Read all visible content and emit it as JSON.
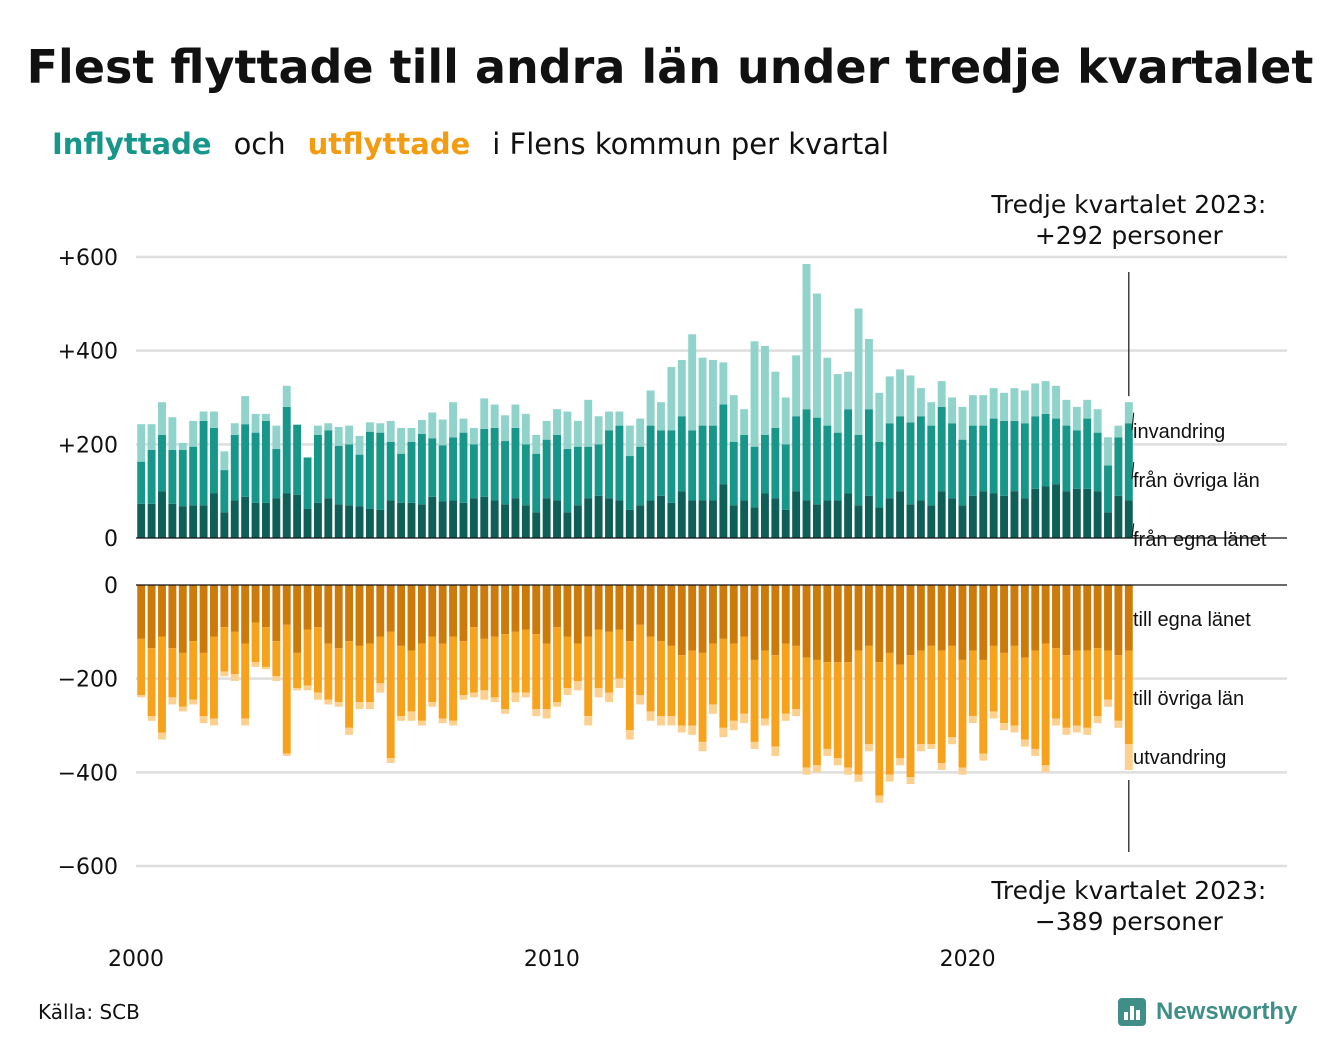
{
  "header": {
    "title": "Flest flyttade till andra län under tredje kvartalet",
    "subtitle_in": "Inflyttade",
    "subtitle_and": "och",
    "subtitle_out": "utflyttade",
    "subtitle_rest": "i Flens kommun per kvartal"
  },
  "footer": {
    "source": "Källa: SCB",
    "brand": "Newsworthy",
    "brand_icon": "bar-chart-icon"
  },
  "colors": {
    "in_dark": "#0e5f57",
    "in_mid": "#17968a",
    "in_light": "#8fd3cb",
    "out_dark": "#cc7a0a",
    "out_mid": "#f7a21d",
    "out_light": "#fcd18f",
    "brand": "#3f8f88"
  },
  "chart_data": {
    "type": "bar",
    "stacked": true,
    "x_ticks": [
      "2000",
      "2010",
      "2020"
    ],
    "x_range": [
      2000,
      2024
    ],
    "top_panel": {
      "ylim": [
        0,
        600
      ],
      "y_ticks": [
        "0",
        "+200",
        "+400",
        "+600"
      ],
      "y_tick_values": [
        0,
        200,
        400,
        600
      ],
      "series": [
        {
          "name": "från egna länet",
          "values": [
            73,
            73,
            100,
            73,
            68,
            70,
            70,
            95,
            55,
            80,
            88,
            75,
            75,
            85,
            95,
            92,
            62,
            75,
            85,
            72,
            70,
            68,
            62,
            60,
            80,
            75,
            75,
            72,
            88,
            78,
            80,
            75,
            85,
            88,
            80,
            72,
            85,
            70,
            55,
            85,
            80,
            55,
            70,
            85,
            90,
            85,
            80,
            60,
            70,
            80,
            90,
            75,
            100,
            80,
            80,
            80,
            115,
            70,
            80,
            65,
            95,
            85,
            60,
            100,
            80,
            72,
            80,
            80,
            95,
            70,
            90,
            65,
            85,
            100,
            72,
            80,
            70,
            100,
            85,
            70,
            90,
            100,
            95,
            90,
            100,
            85,
            105,
            110,
            115,
            100,
            105,
            105,
            100,
            55,
            90,
            80
          ]
        },
        {
          "name": "från övriga län",
          "values": [
            90,
            115,
            120,
            115,
            120,
            125,
            180,
            140,
            90,
            140,
            155,
            150,
            175,
            105,
            185,
            150,
            110,
            145,
            145,
            125,
            130,
            110,
            165,
            165,
            125,
            105,
            130,
            150,
            125,
            120,
            135,
            150,
            115,
            145,
            155,
            135,
            150,
            130,
            125,
            125,
            140,
            135,
            125,
            110,
            110,
            145,
            160,
            115,
            125,
            160,
            140,
            155,
            160,
            150,
            160,
            160,
            170,
            135,
            140,
            130,
            125,
            150,
            140,
            160,
            195,
            185,
            160,
            145,
            180,
            150,
            185,
            140,
            160,
            160,
            175,
            180,
            170,
            180,
            160,
            140,
            150,
            140,
            160,
            160,
            150,
            160,
            155,
            155,
            140,
            140,
            125,
            150,
            125,
            100,
            125,
            165
          ]
        },
        {
          "name": "invandring",
          "values": [
            80,
            55,
            70,
            70,
            15,
            55,
            20,
            35,
            40,
            25,
            60,
            40,
            15,
            50,
            45,
            0,
            0,
            20,
            15,
            40,
            40,
            40,
            20,
            20,
            45,
            55,
            30,
            30,
            55,
            55,
            75,
            30,
            35,
            65,
            50,
            55,
            50,
            65,
            40,
            40,
            55,
            80,
            55,
            100,
            60,
            40,
            30,
            65,
            60,
            75,
            60,
            135,
            120,
            205,
            145,
            140,
            90,
            100,
            55,
            225,
            190,
            120,
            100,
            130,
            310,
            265,
            145,
            125,
            80,
            270,
            150,
            105,
            100,
            100,
            100,
            60,
            50,
            55,
            55,
            70,
            65,
            65,
            65,
            60,
            70,
            70,
            70,
            70,
            70,
            55,
            50,
            40,
            50,
            60,
            25,
            45
          ]
        }
      ],
      "end_annotation": [
        "Tredje kvartalet 2023:",
        "+292 personer"
      ]
    },
    "bottom_panel": {
      "ylim": [
        -600,
        0
      ],
      "y_ticks": [
        "0",
        "−200",
        "−400",
        "−600"
      ],
      "y_tick_values": [
        0,
        -200,
        -400,
        -600
      ],
      "series": [
        {
          "name": "till egna länet",
          "values": [
            -115,
            -135,
            -110,
            -135,
            -145,
            -120,
            -145,
            -110,
            -90,
            -100,
            -125,
            -80,
            -90,
            -120,
            -85,
            -145,
            -95,
            -90,
            -125,
            -135,
            -120,
            -130,
            -125,
            -110,
            -100,
            -130,
            -140,
            -125,
            -110,
            -125,
            -110,
            -120,
            -90,
            -115,
            -110,
            -105,
            -100,
            -95,
            -105,
            -125,
            -90,
            -110,
            -125,
            -110,
            -95,
            -100,
            -95,
            -120,
            -85,
            -110,
            -120,
            -130,
            -150,
            -140,
            -145,
            -125,
            -115,
            -125,
            -110,
            -160,
            -140,
            -150,
            -125,
            -130,
            -155,
            -160,
            -165,
            -165,
            -165,
            -140,
            -130,
            -165,
            -145,
            -170,
            -150,
            -140,
            -130,
            -140,
            -130,
            -160,
            -140,
            -160,
            -130,
            -145,
            -130,
            -155,
            -140,
            -125,
            -135,
            -150,
            -140,
            -140,
            -135,
            -140,
            -150,
            -140
          ]
        },
        {
          "name": "till övriga län",
          "values": [
            -120,
            -145,
            -205,
            -105,
            -115,
            -125,
            -135,
            -175,
            -95,
            -90,
            -160,
            -85,
            -85,
            -75,
            -275,
            -75,
            -120,
            -140,
            -120,
            -115,
            -185,
            -120,
            -125,
            -100,
            -270,
            -150,
            -130,
            -165,
            -140,
            -160,
            -180,
            -115,
            -140,
            -110,
            -130,
            -160,
            -130,
            -135,
            -160,
            -140,
            -160,
            -110,
            -80,
            -170,
            -125,
            -130,
            -105,
            -190,
            -150,
            -160,
            -160,
            -150,
            -150,
            -160,
            -190,
            -130,
            -190,
            -165,
            -165,
            -175,
            -145,
            -195,
            -150,
            -135,
            -235,
            -225,
            -185,
            -205,
            -225,
            -265,
            -210,
            -285,
            -260,
            -200,
            -260,
            -200,
            -210,
            -240,
            -195,
            -230,
            -140,
            -200,
            -140,
            -150,
            -170,
            -175,
            -210,
            -260,
            -150,
            -155,
            -160,
            -165,
            -145,
            -105,
            -140,
            -200
          ]
        },
        {
          "name": "utvandring",
          "values": [
            -5,
            -10,
            -15,
            -15,
            -10,
            -10,
            -15,
            -15,
            -10,
            -15,
            -15,
            -10,
            -5,
            -10,
            -5,
            -5,
            -10,
            -15,
            -10,
            -10,
            -15,
            -15,
            -15,
            -20,
            -10,
            -10,
            -20,
            -10,
            -10,
            -10,
            -10,
            -10,
            -10,
            -20,
            -10,
            -10,
            -20,
            -10,
            -15,
            -20,
            -10,
            -15,
            -20,
            -20,
            -20,
            -20,
            -20,
            -20,
            -20,
            -20,
            -20,
            -20,
            -15,
            -20,
            -20,
            -20,
            -20,
            -20,
            -20,
            -15,
            -15,
            -20,
            -15,
            -15,
            -15,
            -15,
            -15,
            -15,
            -15,
            -15,
            -15,
            -15,
            -15,
            -15,
            -15,
            -15,
            -10,
            -15,
            -15,
            -15,
            -15,
            -15,
            -15,
            -15,
            -15,
            -15,
            -15,
            -15,
            -15,
            -15,
            -15,
            -15,
            -15,
            -15,
            -15,
            -55
          ]
        }
      ],
      "end_annotation": [
        "Tredje kvartalet 2023:",
        "−389 personer"
      ]
    }
  }
}
